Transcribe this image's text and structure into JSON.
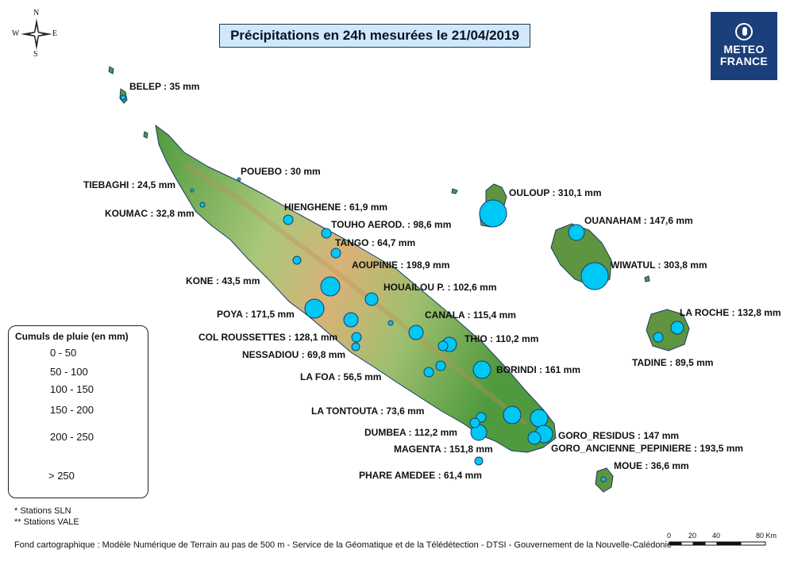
{
  "title": "Précipitations en 24h mesurées le 21/04/2019",
  "logo": {
    "line1": "METEO",
    "line2": "FRANCE"
  },
  "compass": {
    "n": "N",
    "s": "S",
    "e": "E",
    "w": "W"
  },
  "stations": [
    {
      "id": "belep",
      "label": "BELEP : 35 mm"
    },
    {
      "id": "pouebo",
      "label": "POUEBO : 30 mm"
    },
    {
      "id": "tiebaghi",
      "label": "TIEBAGHI : 24,5 mm"
    },
    {
      "id": "koumac",
      "label": "KOUMAC : 32,8 mm"
    },
    {
      "id": "hienghene",
      "label": "HIENGHENE : 61,9 mm"
    },
    {
      "id": "touho",
      "label": "TOUHO AEROD. : 98,6 mm"
    },
    {
      "id": "tango",
      "label": "TANGO : 64,7 mm"
    },
    {
      "id": "aoupinie",
      "label": "AOUPINIE : 198,9 mm"
    },
    {
      "id": "kone",
      "label": "KONE : 43,5 mm"
    },
    {
      "id": "houailou",
      "label": "HOUAILOU P. : 102,6 mm"
    },
    {
      "id": "poya",
      "label": "POYA : 171,5 mm"
    },
    {
      "id": "canala",
      "label": "CANALA : 115,4 mm"
    },
    {
      "id": "col_roussettes",
      "label": "COL ROUSSETTES : 128,1 mm"
    },
    {
      "id": "thio",
      "label": "THIO : 110,2 mm"
    },
    {
      "id": "nessadiou",
      "label": "NESSADIOU : 69,8 mm"
    },
    {
      "id": "borindi",
      "label": "BORINDI : 161 mm"
    },
    {
      "id": "la_foa",
      "label": "LA FOA : 56,5 mm"
    },
    {
      "id": "la_tontouta",
      "label": "LA TONTOUTA : 73,6 mm"
    },
    {
      "id": "dumbea",
      "label": "DUMBEA : 112,2 mm"
    },
    {
      "id": "goro_residus",
      "label": "GORO_RESIDUS : 147 mm"
    },
    {
      "id": "magenta",
      "label": "MAGENTA : 151,8 mm"
    },
    {
      "id": "goro_anc",
      "label": "GORO_ANCIENNE_PEPINIERE : 193,5 mm"
    },
    {
      "id": "phare_amedee",
      "label": "PHARE AMEDEE : 61,4 mm"
    },
    {
      "id": "moue",
      "label": "MOUE : 36,6 mm"
    },
    {
      "id": "ouloup",
      "label": "OULOUP : 310,1 mm"
    },
    {
      "id": "ouanaham",
      "label": "OUANAHAM : 147,6 mm"
    },
    {
      "id": "wiwatul",
      "label": "WIWATUL : 303,8 mm"
    },
    {
      "id": "la_roche",
      "label": "LA ROCHE : 132,8 mm"
    },
    {
      "id": "tadine",
      "label": "TADINE : 89,5 mm"
    }
  ],
  "legend": {
    "title": "Cumuls de pluie (en mm)",
    "classes": [
      "0 - 50",
      "50 - 100",
      "100 - 150",
      "150 - 200",
      "200 - 250",
      "> 250"
    ]
  },
  "notes": [
    "* Stations SLN",
    "** Stations VALE"
  ],
  "footer": "Fond cartographique : Modèle Numérique de Terrain au pas de 500 m - Service de la Géomatique et de la Télédétection - DTSI - Gouvernement de la Nouvelle-Calédonie",
  "scale": {
    "ticks": [
      "0",
      "20",
      "40",
      "80 Km"
    ]
  },
  "colors": {
    "circle_fill": "#00c8f5",
    "circle_stroke": "#1a3a6a",
    "land_low": "#4f9a3f",
    "land_high": "#e8b070",
    "island_fill": "#5f9440"
  }
}
